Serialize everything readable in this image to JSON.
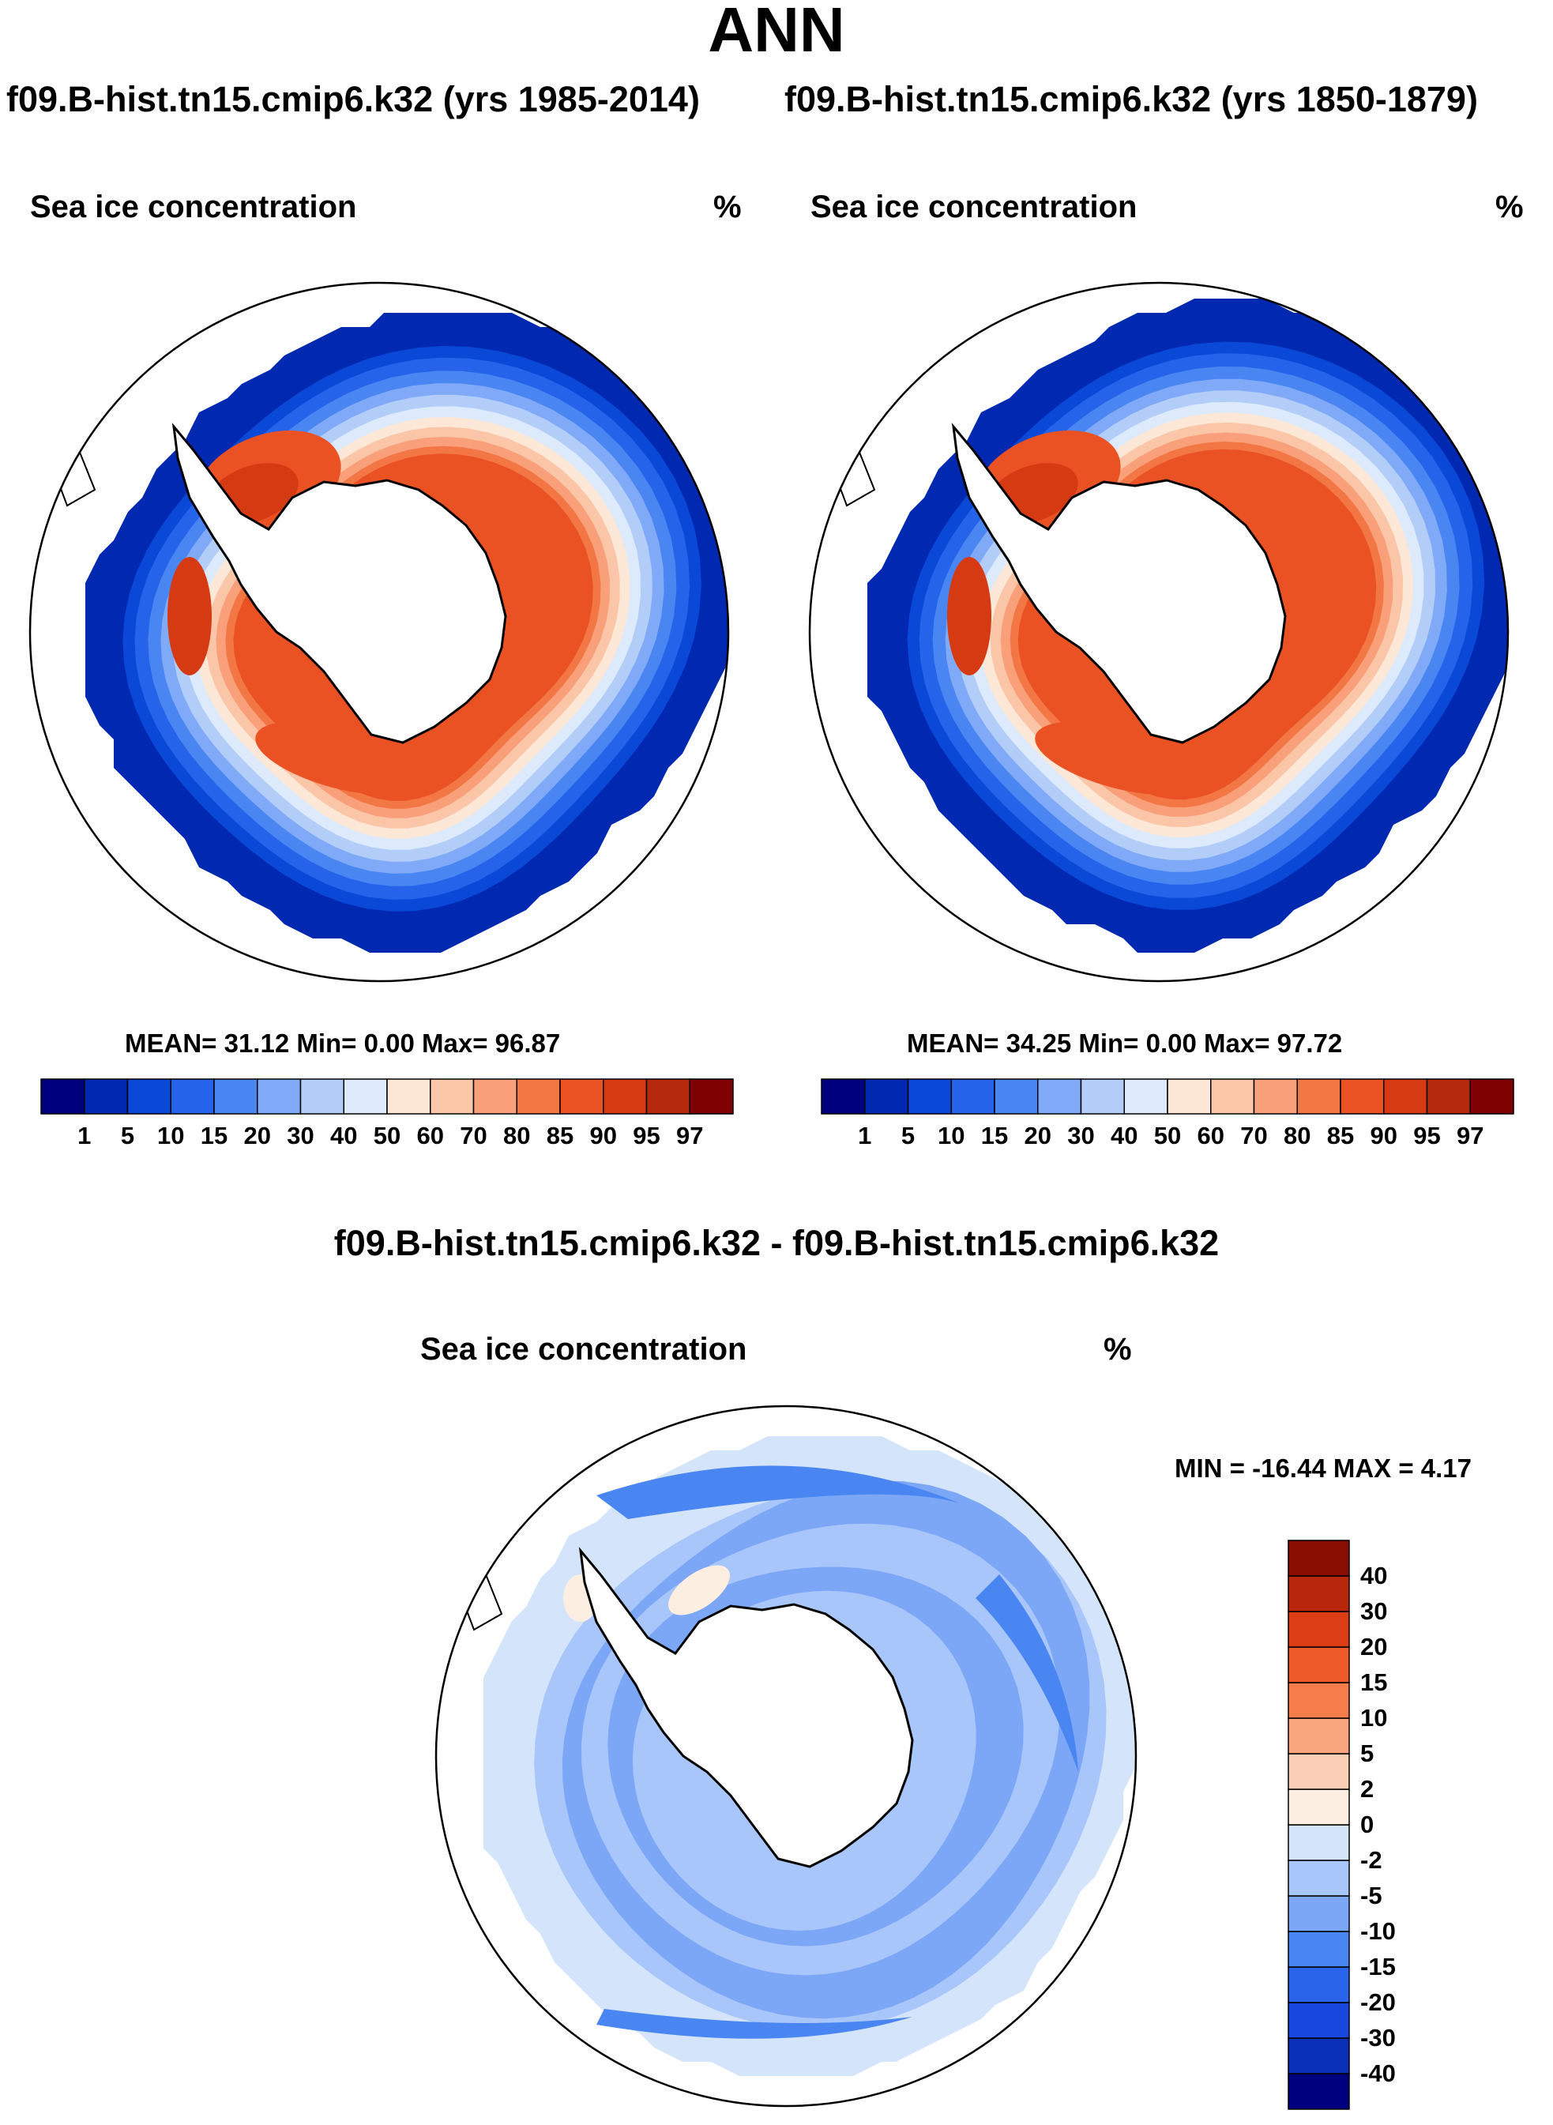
{
  "title": "ANN",
  "panels": {
    "left_title": "f09.B-hist.tn15.cmip6.k32 (yrs 1985-2014)",
    "right_title": "f09.B-hist.tn15.cmip6.k32 (yrs 1850-1879)",
    "diff_title": "f09.B-hist.tn15.cmip6.k32 - f09.B-hist.tn15.cmip6.k32"
  },
  "labels": {
    "variable": "Sea ice concentration",
    "unit": "%"
  },
  "stats": {
    "left": "MEAN=  31.12  Min=    0.00  Max=  96.87",
    "right": "MEAN=  34.25  Min=    0.00  Max=  97.72",
    "diff": "MIN = -16.44 MAX =    4.17"
  },
  "chart_data": [
    {
      "type": "heatmap",
      "title": "f09.B-hist.tn15.cmip6.k32 (yrs 1985-2014)",
      "variable": "Sea ice concentration",
      "units": "%",
      "projection": "south polar stereographic",
      "mean": 31.12,
      "min": 0.0,
      "max": 96.87,
      "contour_levels": [
        1,
        5,
        10,
        15,
        20,
        30,
        40,
        50,
        60,
        70,
        80,
        85,
        90,
        95,
        97
      ],
      "colors": [
        "#00007f",
        "#0028b0",
        "#0a48d8",
        "#2563eb",
        "#4a86f2",
        "#80aaf7",
        "#b3cdf9",
        "#ddeafb",
        "#fde7d7",
        "#fbc6a8",
        "#f9a07a",
        "#f37745",
        "#ea5224",
        "#d63a12",
        "#b52a0c",
        "#7f0000"
      ]
    },
    {
      "type": "heatmap",
      "title": "f09.B-hist.tn15.cmip6.k32 (yrs 1850-1879)",
      "variable": "Sea ice concentration",
      "units": "%",
      "projection": "south polar stereographic",
      "mean": 34.25,
      "min": 0.0,
      "max": 97.72,
      "contour_levels": [
        1,
        5,
        10,
        15,
        20,
        30,
        40,
        50,
        60,
        70,
        80,
        85,
        90,
        95,
        97
      ],
      "colors": [
        "#00007f",
        "#0028b0",
        "#0a48d8",
        "#2563eb",
        "#4a86f2",
        "#80aaf7",
        "#b3cdf9",
        "#ddeafb",
        "#fde7d7",
        "#fbc6a8",
        "#f9a07a",
        "#f37745",
        "#ea5224",
        "#d63a12",
        "#b52a0c",
        "#7f0000"
      ]
    },
    {
      "type": "heatmap",
      "title": "f09.B-hist.tn15.cmip6.k32 - f09.B-hist.tn15.cmip6.k32",
      "variable": "Sea ice concentration",
      "units": "%",
      "projection": "south polar stereographic",
      "min": -16.44,
      "max": 4.17,
      "contour_levels": [
        -40,
        -30,
        -20,
        -15,
        -10,
        -5,
        -2,
        0,
        2,
        5,
        10,
        15,
        20,
        30,
        40
      ],
      "colors": [
        "#00007f",
        "#0a2fb8",
        "#1848e0",
        "#2a64ea",
        "#4a86f2",
        "#7ca6f6",
        "#a8c6f9",
        "#d4e5fb",
        "#fdeee2",
        "#fcd0b6",
        "#f9a67f",
        "#f57d4b",
        "#ee5a29",
        "#dd3d14",
        "#b8270b",
        "#8a0d02"
      ]
    }
  ]
}
